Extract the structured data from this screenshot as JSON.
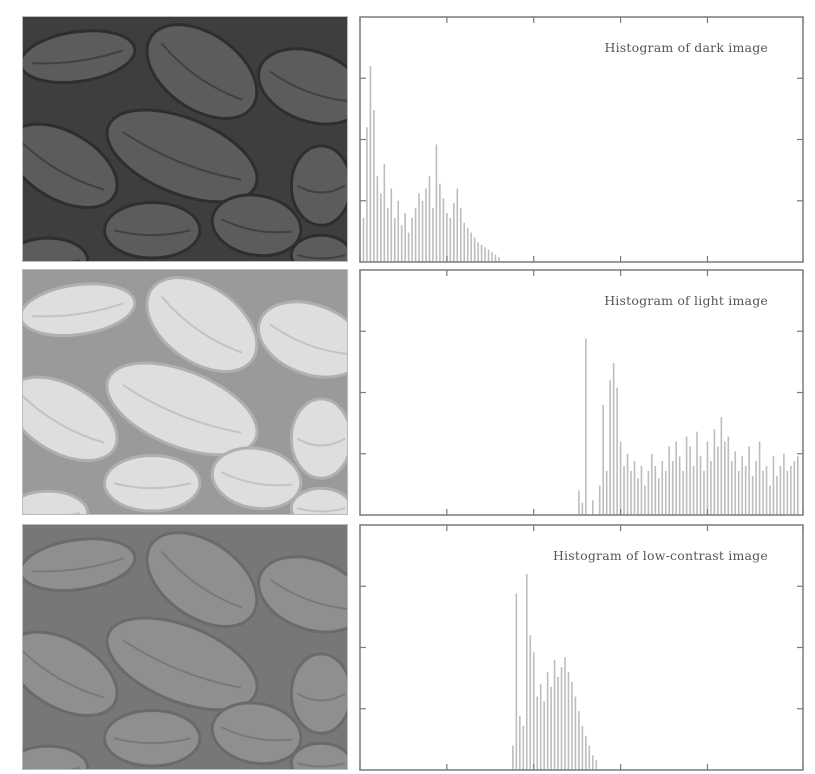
{
  "colors": {
    "frame": "#7a7a7a",
    "bar": "#bdbdbd",
    "dark_bg": "#3e3e3e",
    "dark_bean": "#5c5c5c",
    "dark_edge": "#2e2e2e",
    "light_bg": "#9a9a9a",
    "light_bean": "#dedede",
    "light_edge": "#b0b0b0",
    "low_bg": "#777777",
    "low_bean": "#8f8f8f",
    "low_edge": "#6a6a6a"
  },
  "photos": [
    {
      "name": "dark-image",
      "tone": "dark"
    },
    {
      "name": "light-image",
      "tone": "light"
    },
    {
      "name": "low-contrast-image",
      "tone": "low"
    }
  ],
  "chart_data": [
    {
      "type": "bar",
      "title": "Histogram of dark image",
      "xlim": [
        0,
        255
      ],
      "ylim": [
        0,
        100
      ],
      "x_ticks": [
        0,
        50,
        100,
        150,
        200,
        255
      ],
      "y_ticks": [
        25,
        50,
        75
      ],
      "bars": [
        {
          "x": 2,
          "y": 18
        },
        {
          "x": 4,
          "y": 55
        },
        {
          "x": 6,
          "y": 80
        },
        {
          "x": 8,
          "y": 62
        },
        {
          "x": 10,
          "y": 35
        },
        {
          "x": 12,
          "y": 28
        },
        {
          "x": 14,
          "y": 40
        },
        {
          "x": 16,
          "y": 22
        },
        {
          "x": 18,
          "y": 30
        },
        {
          "x": 20,
          "y": 18
        },
        {
          "x": 22,
          "y": 25
        },
        {
          "x": 24,
          "y": 15
        },
        {
          "x": 26,
          "y": 20
        },
        {
          "x": 28,
          "y": 12
        },
        {
          "x": 30,
          "y": 18
        },
        {
          "x": 32,
          "y": 22
        },
        {
          "x": 34,
          "y": 28
        },
        {
          "x": 36,
          "y": 25
        },
        {
          "x": 38,
          "y": 30
        },
        {
          "x": 40,
          "y": 35
        },
        {
          "x": 42,
          "y": 22
        },
        {
          "x": 44,
          "y": 48
        },
        {
          "x": 46,
          "y": 32
        },
        {
          "x": 48,
          "y": 26
        },
        {
          "x": 50,
          "y": 20
        },
        {
          "x": 52,
          "y": 18
        },
        {
          "x": 54,
          "y": 24
        },
        {
          "x": 56,
          "y": 30
        },
        {
          "x": 58,
          "y": 22
        },
        {
          "x": 60,
          "y": 16
        },
        {
          "x": 62,
          "y": 14
        },
        {
          "x": 64,
          "y": 12
        },
        {
          "x": 66,
          "y": 10
        },
        {
          "x": 68,
          "y": 8
        },
        {
          "x": 70,
          "y": 7
        },
        {
          "x": 72,
          "y": 6
        },
        {
          "x": 74,
          "y": 5
        },
        {
          "x": 76,
          "y": 4
        },
        {
          "x": 78,
          "y": 3
        },
        {
          "x": 80,
          "y": 2
        }
      ]
    },
    {
      "type": "bar",
      "title": "Histogram of light image",
      "xlim": [
        0,
        255
      ],
      "ylim": [
        0,
        100
      ],
      "x_ticks": [
        0,
        50,
        100,
        150,
        200,
        255
      ],
      "y_ticks": [
        25,
        50,
        75
      ],
      "bars": [
        {
          "x": 126,
          "y": 10
        },
        {
          "x": 128,
          "y": 5
        },
        {
          "x": 130,
          "y": 72
        },
        {
          "x": 134,
          "y": 6
        },
        {
          "x": 138,
          "y": 12
        },
        {
          "x": 140,
          "y": 45
        },
        {
          "x": 142,
          "y": 18
        },
        {
          "x": 144,
          "y": 55
        },
        {
          "x": 146,
          "y": 62
        },
        {
          "x": 148,
          "y": 52
        },
        {
          "x": 150,
          "y": 30
        },
        {
          "x": 152,
          "y": 20
        },
        {
          "x": 154,
          "y": 25
        },
        {
          "x": 156,
          "y": 18
        },
        {
          "x": 158,
          "y": 22
        },
        {
          "x": 160,
          "y": 15
        },
        {
          "x": 162,
          "y": 20
        },
        {
          "x": 164,
          "y": 12
        },
        {
          "x": 166,
          "y": 18
        },
        {
          "x": 168,
          "y": 25
        },
        {
          "x": 170,
          "y": 20
        },
        {
          "x": 172,
          "y": 15
        },
        {
          "x": 174,
          "y": 22
        },
        {
          "x": 176,
          "y": 18
        },
        {
          "x": 178,
          "y": 28
        },
        {
          "x": 180,
          "y": 22
        },
        {
          "x": 182,
          "y": 30
        },
        {
          "x": 184,
          "y": 24
        },
        {
          "x": 186,
          "y": 18
        },
        {
          "x": 188,
          "y": 32
        },
        {
          "x": 190,
          "y": 28
        },
        {
          "x": 192,
          "y": 20
        },
        {
          "x": 194,
          "y": 34
        },
        {
          "x": 196,
          "y": 24
        },
        {
          "x": 198,
          "y": 18
        },
        {
          "x": 200,
          "y": 30
        },
        {
          "x": 202,
          "y": 22
        },
        {
          "x": 204,
          "y": 35
        },
        {
          "x": 206,
          "y": 28
        },
        {
          "x": 208,
          "y": 40
        },
        {
          "x": 210,
          "y": 30
        },
        {
          "x": 212,
          "y": 32
        },
        {
          "x": 214,
          "y": 22
        },
        {
          "x": 216,
          "y": 26
        },
        {
          "x": 218,
          "y": 18
        },
        {
          "x": 220,
          "y": 24
        },
        {
          "x": 222,
          "y": 20
        },
        {
          "x": 224,
          "y": 28
        },
        {
          "x": 226,
          "y": 16
        },
        {
          "x": 228,
          "y": 22
        },
        {
          "x": 230,
          "y": 30
        },
        {
          "x": 232,
          "y": 18
        },
        {
          "x": 234,
          "y": 20
        },
        {
          "x": 236,
          "y": 12
        },
        {
          "x": 238,
          "y": 24
        },
        {
          "x": 240,
          "y": 16
        },
        {
          "x": 242,
          "y": 20
        },
        {
          "x": 244,
          "y": 25
        },
        {
          "x": 246,
          "y": 18
        },
        {
          "x": 248,
          "y": 20
        },
        {
          "x": 250,
          "y": 22
        },
        {
          "x": 252,
          "y": 24
        }
      ]
    },
    {
      "type": "bar",
      "title": "Histogram of low-contrast image",
      "xlim": [
        0,
        255
      ],
      "ylim": [
        0,
        100
      ],
      "x_ticks": [
        0,
        50,
        100,
        150,
        200,
        255
      ],
      "y_ticks": [
        25,
        50,
        75
      ],
      "bars": [
        {
          "x": 88,
          "y": 10
        },
        {
          "x": 90,
          "y": 72
        },
        {
          "x": 92,
          "y": 22
        },
        {
          "x": 94,
          "y": 18
        },
        {
          "x": 96,
          "y": 80
        },
        {
          "x": 98,
          "y": 55
        },
        {
          "x": 100,
          "y": 48
        },
        {
          "x": 102,
          "y": 30
        },
        {
          "x": 104,
          "y": 35
        },
        {
          "x": 106,
          "y": 28
        },
        {
          "x": 108,
          "y": 40
        },
        {
          "x": 110,
          "y": 34
        },
        {
          "x": 112,
          "y": 45
        },
        {
          "x": 114,
          "y": 38
        },
        {
          "x": 116,
          "y": 42
        },
        {
          "x": 118,
          "y": 46
        },
        {
          "x": 120,
          "y": 40
        },
        {
          "x": 122,
          "y": 36
        },
        {
          "x": 124,
          "y": 30
        },
        {
          "x": 126,
          "y": 24
        },
        {
          "x": 128,
          "y": 18
        },
        {
          "x": 130,
          "y": 14
        },
        {
          "x": 132,
          "y": 10
        },
        {
          "x": 134,
          "y": 6
        },
        {
          "x": 136,
          "y": 4
        }
      ]
    }
  ]
}
